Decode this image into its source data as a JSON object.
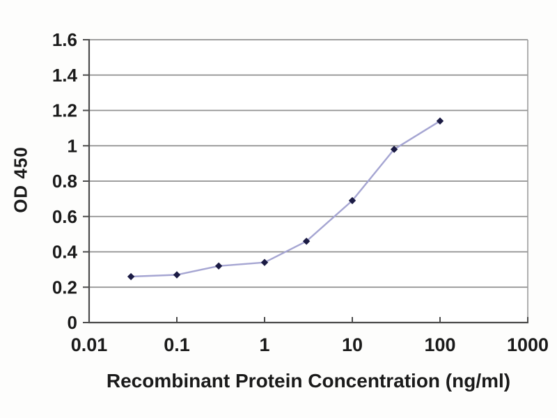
{
  "figure": {
    "background": "#fdfdfc",
    "plot_background": "#ffffff"
  },
  "chart_data": {
    "type": "line",
    "x": [
      0.03,
      0.1,
      0.3,
      1,
      3,
      10,
      30,
      100
    ],
    "y": [
      0.26,
      0.27,
      0.32,
      0.34,
      0.46,
      0.69,
      0.98,
      1.14
    ],
    "xlabel": "Recombinant Protein Concentration (ng/ml)",
    "ylabel": "OD 450",
    "x_scale": "log",
    "xlim": [
      0.01,
      1000
    ],
    "ylim": [
      0,
      1.6
    ],
    "x_ticks": [
      "0.01",
      "0.1",
      "1",
      "10",
      "100",
      "1000"
    ],
    "x_tick_values": [
      0.01,
      0.1,
      1,
      10,
      100,
      1000
    ],
    "y_ticks": [
      "0",
      "0.2",
      "0.4",
      "0.6",
      "0.8",
      "1",
      "1.2",
      "1.4",
      "1.6"
    ],
    "y_tick_values": [
      0,
      0.2,
      0.4,
      0.6,
      0.8,
      1,
      1.2,
      1.4,
      1.6
    ],
    "grid": "horizontal",
    "legend": "none",
    "marker_shape": "diamond",
    "colors": {
      "line": "#a5a5d2",
      "marker": "#1b1b44",
      "gridline": "#909090",
      "axis": "#4b4b4b",
      "plot_border": "#9c9c9c",
      "text": "#1a1a1a"
    }
  }
}
